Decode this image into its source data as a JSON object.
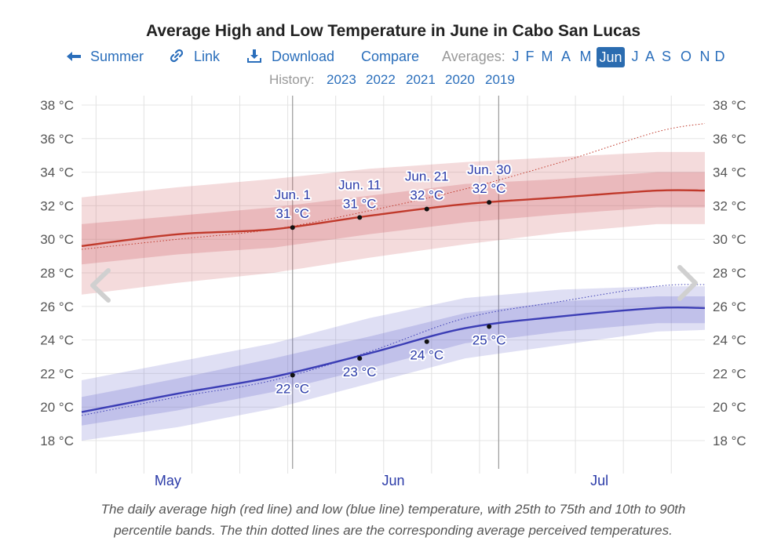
{
  "title": "Average High and Low Temperature in June in Cabo San Lucas",
  "nav": {
    "summary": "Summer",
    "link": "Link",
    "download": "Download",
    "compare": "Compare",
    "averages_label": "Averages:",
    "months": [
      "J",
      "F",
      "M",
      "A",
      "M",
      "Jun",
      "J",
      "A",
      "S",
      "O",
      "N",
      "D"
    ],
    "active_month": "Jun",
    "accent": "#2b6cb0"
  },
  "history": {
    "label": "History:",
    "years": [
      "2023",
      "2022",
      "2021",
      "2020",
      "2019"
    ]
  },
  "chart_data": {
    "type": "line",
    "y_ticks": [
      "18 °C",
      "20 °C",
      "22 °C",
      "24 °C",
      "26 °C",
      "28 °C",
      "30 °C",
      "32 °C",
      "34 °C",
      "36 °C",
      "38 °C"
    ],
    "ylim": [
      16.5,
      38
    ],
    "x_labels": [
      "May",
      "Jun",
      "Jul"
    ],
    "x_range_days": [
      0,
      65
    ],
    "x_label_days": [
      9,
      32.5,
      54
    ],
    "gridline_days": [
      1.5,
      6.5,
      11.5,
      16.5,
      21.5,
      26.5,
      31.5,
      36.5,
      41.5,
      46.5,
      51.5,
      56.5,
      61.5
    ],
    "cursor_days": [
      22,
      43.5
    ],
    "series": [
      {
        "name": "Average High",
        "color": "#c0392b",
        "x": [
          0,
          10,
          20,
          30,
          40,
          50,
          60,
          65
        ],
        "values": [
          29.6,
          30.3,
          30.6,
          31.4,
          32.1,
          32.5,
          32.9,
          32.9
        ],
        "p25": [
          28.5,
          29.1,
          29.5,
          30.3,
          31.0,
          31.5,
          31.9,
          31.9
        ],
        "p75": [
          30.9,
          31.4,
          31.9,
          32.6,
          33.3,
          33.6,
          34.0,
          34.0
        ],
        "p10": [
          26.7,
          27.4,
          28.0,
          28.9,
          29.7,
          30.4,
          30.9,
          30.9
        ],
        "p90": [
          32.5,
          33.1,
          33.6,
          34.2,
          34.6,
          34.9,
          35.2,
          35.2
        ],
        "perceived": [
          29.4,
          30.0,
          30.6,
          31.7,
          33.0,
          34.6,
          36.4,
          36.9
        ]
      },
      {
        "name": "Average Low",
        "color": "#3b3db5",
        "x": [
          0,
          10,
          20,
          30,
          40,
          50,
          60,
          65
        ],
        "values": [
          19.7,
          20.8,
          21.8,
          23.2,
          24.7,
          25.4,
          25.9,
          25.9
        ],
        "p25": [
          18.9,
          19.8,
          20.9,
          22.3,
          23.8,
          24.5,
          25.0,
          25.0
        ],
        "p75": [
          20.6,
          21.7,
          22.9,
          24.2,
          25.6,
          26.3,
          26.6,
          26.6
        ],
        "p10": [
          18.0,
          18.8,
          19.9,
          21.4,
          22.9,
          23.7,
          24.5,
          24.6
        ],
        "p90": [
          21.6,
          22.7,
          23.8,
          25.3,
          26.5,
          27.0,
          27.2,
          27.2
        ],
        "perceived": [
          19.5,
          20.6,
          21.6,
          23.3,
          25.3,
          26.3,
          27.2,
          27.3
        ]
      }
    ],
    "annotations_high": [
      {
        "day": 22,
        "date": "Jun. 1",
        "value": 30.7,
        "label": "31 °C"
      },
      {
        "day": 29,
        "date": "Jun. 11",
        "value": 31.3,
        "label": "31 °C"
      },
      {
        "day": 36,
        "date": "Jun. 21",
        "value": 31.8,
        "label": "32 °C"
      },
      {
        "day": 42.5,
        "date": "Jun. 30",
        "value": 32.2,
        "label": "32 °C"
      }
    ],
    "annotations_low": [
      {
        "day": 22,
        "value": 21.9,
        "label": "22 °C"
      },
      {
        "day": 29,
        "value": 22.9,
        "label": "23 °C"
      },
      {
        "day": 36,
        "value": 23.9,
        "label": "24 °C"
      },
      {
        "day": 42.5,
        "value": 24.8,
        "label": "25 °C"
      }
    ]
  },
  "caption": {
    "line1": "The daily average high (red line) and low (blue line) temperature, with 25th to 75th and 10th to 90th",
    "line2": "percentile bands. The thin dotted lines are the corresponding average perceived temperatures."
  }
}
